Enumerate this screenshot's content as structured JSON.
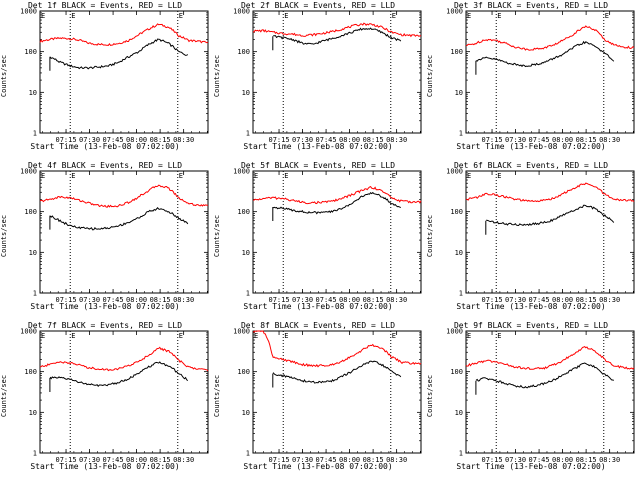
{
  "chart_data": [
    {
      "type": "line",
      "title": "Det 1f BLACK = Events, RED = LLD",
      "xlabel": "Start Time (13-Feb-08 07:02:00)",
      "ylabel": "Counts/sec",
      "yscale": "log",
      "ylim": [
        1,
        1000
      ],
      "yticks": [
        "1",
        "10",
        "100",
        "1000"
      ],
      "xticks": [
        "07:15",
        "07:30",
        "07:45",
        "08:00",
        "08:15",
        "08:30"
      ],
      "vlines": [
        7.2,
        8.2
      ],
      "markers": [
        "E",
        "E"
      ],
      "series": [
        {
          "color": "#ff0000",
          "values": [
            180,
            200,
            215,
            210,
            190,
            160,
            150,
            150,
            160,
            190,
            260,
            360,
            470,
            400,
            250,
            190,
            180,
            165
          ]
        },
        {
          "color": "#000000",
          "values": [
            null,
            75,
            55,
            45,
            40,
            40,
            42,
            45,
            55,
            75,
            100,
            150,
            200,
            160,
            100,
            80,
            null,
            null
          ]
        }
      ]
    },
    {
      "type": "line",
      "title": "Det 2f BLACK = Events, RED = LLD",
      "xlabel": "Start Time (13-Feb-08 07:02:00)",
      "ylabel": "Counts/sec",
      "yscale": "log",
      "ylim": [
        1,
        1000
      ],
      "yticks": [
        "1",
        "10",
        "100",
        "1000"
      ],
      "xticks": [
        "07:15",
        "07:30",
        "07:45",
        "08:00",
        "08:15",
        "08:30"
      ],
      "vlines": [
        7.2,
        8.2
      ],
      "markers": [
        "E",
        "E"
      ],
      "series": [
        {
          "color": "#ff0000",
          "values": [
            320,
            330,
            300,
            280,
            270,
            250,
            260,
            280,
            310,
            360,
            420,
            480,
            470,
            400,
            300,
            260,
            250,
            245
          ]
        },
        {
          "color": "#000000",
          "values": [
            null,
            null,
            240,
            220,
            200,
            160,
            150,
            180,
            210,
            250,
            300,
            360,
            370,
            300,
            220,
            180,
            null,
            null
          ]
        }
      ]
    },
    {
      "type": "line",
      "title": "Det 3f BLACK = Events, RED = LLD",
      "xlabel": "Start Time (13-Feb-08 07:02:00)",
      "ylabel": "Counts/sec",
      "yscale": "log",
      "ylim": [
        1,
        1000
      ],
      "yticks": [
        "1",
        "10",
        "100",
        "1000"
      ],
      "xticks": [
        "07:15",
        "07:30",
        "07:45",
        "08:00",
        "08:15",
        "08:30"
      ],
      "vlines": [
        7.2,
        8.2
      ],
      "markers": [
        "E",
        "E"
      ],
      "series": [
        {
          "color": "#ff0000",
          "values": [
            140,
            160,
            200,
            190,
            160,
            130,
            115,
            115,
            125,
            150,
            200,
            280,
            420,
            350,
            200,
            145,
            130,
            125
          ]
        },
        {
          "color": "#000000",
          "values": [
            null,
            60,
            70,
            65,
            55,
            48,
            45,
            48,
            55,
            70,
            90,
            130,
            170,
            140,
            90,
            60,
            null,
            null
          ]
        }
      ]
    },
    {
      "type": "line",
      "title": "Det 4f BLACK = Events, RED = LLD",
      "xlabel": "Start Time (13-Feb-08 07:02:00)",
      "ylabel": "Counts/sec",
      "yscale": "log",
      "ylim": [
        1,
        1000
      ],
      "yticks": [
        "1",
        "10",
        "100",
        "1000"
      ],
      "xticks": [
        "07:15",
        "07:30",
        "07:45",
        "08:00",
        "08:15",
        "08:30"
      ],
      "vlines": [
        7.2,
        8.2
      ],
      "markers": [
        "E",
        "E"
      ],
      "series": [
        {
          "color": "#ff0000",
          "values": [
            180,
            200,
            230,
            220,
            190,
            160,
            140,
            135,
            140,
            170,
            230,
            330,
            450,
            380,
            220,
            160,
            145,
            140
          ]
        },
        {
          "color": "#000000",
          "values": [
            null,
            80,
            60,
            45,
            40,
            38,
            38,
            40,
            45,
            55,
            70,
            100,
            120,
            100,
            70,
            50,
            null,
            null
          ]
        }
      ]
    },
    {
      "type": "line",
      "title": "Det 5f BLACK = Events, RED = LLD",
      "xlabel": "Start Time (13-Feb-08 07:02:00)",
      "ylabel": "Counts/sec",
      "yscale": "log",
      "ylim": [
        1,
        1000
      ],
      "yticks": [
        "1",
        "10",
        "100",
        "1000"
      ],
      "xticks": [
        "07:15",
        "07:30",
        "07:45",
        "08:00",
        "08:15",
        "08:30"
      ],
      "vlines": [
        7.2,
        8.2
      ],
      "markers": [
        "E",
        "E"
      ],
      "series": [
        {
          "color": "#ff0000",
          "values": [
            190,
            210,
            220,
            210,
            190,
            170,
            165,
            170,
            180,
            210,
            260,
            330,
            400,
            330,
            220,
            180,
            175,
            175
          ]
        },
        {
          "color": "#000000",
          "values": [
            null,
            null,
            130,
            120,
            110,
            100,
            95,
            95,
            100,
            120,
            160,
            230,
            290,
            240,
            160,
            120,
            null,
            null
          ]
        }
      ]
    },
    {
      "type": "line",
      "title": "Det 6f BLACK = Events, RED = LLD",
      "xlabel": "Start Time (13-Feb-08 07:02:00)",
      "ylabel": "Counts/sec",
      "yscale": "log",
      "ylim": [
        1,
        1000
      ],
      "yticks": [
        "1",
        "10",
        "100",
        "1000"
      ],
      "xticks": [
        "07:15",
        "07:30",
        "07:45",
        "08:00",
        "08:15",
        "08:30"
      ],
      "vlines": [
        7.2,
        8.2
      ],
      "markers": [
        "E",
        "E"
      ],
      "series": [
        {
          "color": "#ff0000",
          "values": [
            200,
            220,
            270,
            260,
            230,
            200,
            185,
            180,
            190,
            220,
            290,
            380,
            490,
            420,
            270,
            200,
            190,
            185
          ]
        },
        {
          "color": "#000000",
          "values": [
            null,
            null,
            60,
            55,
            50,
            48,
            48,
            50,
            55,
            65,
            85,
            110,
            140,
            120,
            80,
            55,
            null,
            null
          ]
        }
      ]
    },
    {
      "type": "line",
      "title": "Det 7f BLACK = Events, RED = LLD",
      "xlabel": "Start Time (13-Feb-08 07:02:00)",
      "ylabel": "Counts/sec",
      "yscale": "log",
      "ylim": [
        1,
        1000
      ],
      "yticks": [
        "1",
        "10",
        "100",
        "1000"
      ],
      "xticks": [
        "07:15",
        "07:30",
        "07:45",
        "08:00",
        "08:15",
        "08:30"
      ],
      "vlines": [
        7.2,
        8.2
      ],
      "markers": [
        "E",
        "E"
      ],
      "series": [
        {
          "color": "#ff0000",
          "values": [
            130,
            150,
            175,
            165,
            145,
            125,
            115,
            112,
            118,
            140,
            180,
            250,
            380,
            320,
            190,
            130,
            115,
            110
          ]
        },
        {
          "color": "#000000",
          "values": [
            null,
            70,
            70,
            65,
            55,
            48,
            45,
            48,
            55,
            68,
            90,
            130,
            170,
            140,
            90,
            60,
            null,
            null
          ]
        }
      ]
    },
    {
      "type": "line",
      "title": "Det 8f BLACK = Events, RED = LLD",
      "xlabel": "Start Time (13-Feb-08 07:02:00)",
      "ylabel": "Counts/sec",
      "yscale": "log",
      "ylim": [
        1,
        1000
      ],
      "yticks": [
        "1",
        "10",
        "100",
        "1000"
      ],
      "xticks": [
        "07:15",
        "07:30",
        "07:45",
        "08:00",
        "08:15",
        "08:30"
      ],
      "vlines": [
        7.2,
        8.2
      ],
      "markers": [
        "E",
        "E"
      ],
      "series": [
        {
          "color": "#ff0000",
          "values": [
            1000,
            1000,
            220,
            200,
            175,
            150,
            140,
            140,
            150,
            180,
            240,
            330,
            460,
            380,
            230,
            170,
            160,
            155
          ]
        },
        {
          "color": "#000000",
          "values": [
            1,
            null,
            90,
            80,
            70,
            60,
            55,
            55,
            60,
            75,
            100,
            140,
            180,
            150,
            100,
            75,
            null,
            null
          ]
        }
      ]
    },
    {
      "type": "line",
      "title": "Det 9f BLACK = Events, RED = LLD",
      "xlabel": "Start Time (13-Feb-08 07:02:00)",
      "ylabel": "Counts/sec",
      "yscale": "log",
      "ylim": [
        1,
        1000
      ],
      "yticks": [
        "1",
        "10",
        "100",
        "1000"
      ],
      "xticks": [
        "07:15",
        "07:30",
        "07:45",
        "08:00",
        "08:15",
        "08:30"
      ],
      "vlines": [
        7.2,
        8.2
      ],
      "markers": [
        "E",
        "E"
      ],
      "series": [
        {
          "color": "#ff0000",
          "values": [
            140,
            160,
            185,
            175,
            150,
            130,
            120,
            118,
            125,
            150,
            200,
            280,
            400,
            330,
            200,
            140,
            125,
            120
          ]
        },
        {
          "color": "#000000",
          "values": [
            null,
            60,
            70,
            60,
            52,
            45,
            42,
            45,
            52,
            65,
            85,
            120,
            160,
            130,
            85,
            58,
            null,
            null
          ]
        }
      ]
    }
  ]
}
